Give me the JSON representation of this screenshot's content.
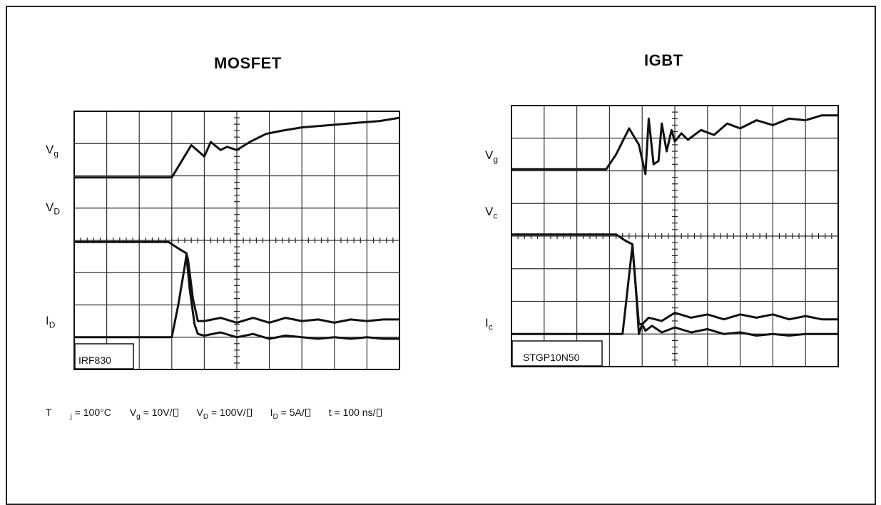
{
  "left_panel": {
    "title": "MOSFET",
    "labels": {
      "vg_main": "V",
      "vg_sub": "g",
      "vd_main": "V",
      "vd_sub": "D",
      "id_main": "I",
      "id_sub": "D"
    },
    "part": "IRF830"
  },
  "right_panel": {
    "title": "IGBT",
    "labels": {
      "vg_main": "V",
      "vg_sub": "g",
      "vc_main": "V",
      "vc_sub": "c",
      "ic_main": "I",
      "ic_sub": "c"
    },
    "part": "STGP10N50"
  },
  "conditions": {
    "tj_main": "T",
    "tj_sub": "j",
    "tj_val": " = 100°C",
    "vg_main": "V",
    "vg_sub": "g",
    "vg_val": " = 10V/",
    "vd_main": "V",
    "vd_sub": "D",
    "vd_val": " = 100V/",
    "id_main": "I",
    "id_sub": "D",
    "id_val": " = 5A/",
    "t_val": "t = 100 ns/"
  },
  "chart_data": [
    {
      "type": "line",
      "title": "MOSFET",
      "grid": true,
      "x_divisions": 10,
      "y_divisions": 8,
      "xlim": [
        0,
        10
      ],
      "ylim": [
        0,
        8
      ],
      "series": [
        {
          "name": "Vg",
          "x": [
            0,
            3.0,
            3.3,
            3.6,
            4.0,
            4.2,
            4.5,
            4.7,
            5.0,
            5.4,
            5.9,
            6.4,
            7.0,
            7.6,
            8.2,
            8.8,
            9.4,
            10.0
          ],
          "y": [
            5.95,
            5.95,
            6.45,
            6.95,
            6.6,
            7.05,
            6.8,
            6.9,
            6.8,
            7.05,
            7.3,
            7.4,
            7.5,
            7.55,
            7.6,
            7.65,
            7.7,
            7.8
          ]
        },
        {
          "name": "Vd",
          "x": [
            0,
            2.6,
            2.9,
            3.2,
            3.45,
            3.5,
            3.65,
            3.8,
            4.0,
            4.5,
            5.0,
            5.5,
            6.0,
            6.5,
            7.0,
            7.5,
            8.0,
            8.5,
            9.0,
            9.5,
            10.0
          ],
          "y": [
            3.95,
            3.95,
            3.95,
            3.75,
            3.6,
            3.4,
            2.2,
            1.5,
            1.5,
            1.6,
            1.45,
            1.6,
            1.45,
            1.6,
            1.5,
            1.55,
            1.45,
            1.55,
            1.5,
            1.55,
            1.55
          ]
        },
        {
          "name": "Id",
          "x": [
            0,
            2.9,
            3.0,
            3.2,
            3.4,
            3.45,
            3.55,
            3.7,
            3.8,
            4.0,
            4.5,
            5.0,
            5.5,
            6.0,
            6.5,
            7.0,
            7.5,
            8.0,
            8.5,
            9.0,
            9.5,
            10.0
          ],
          "y": [
            1.0,
            1.0,
            1.0,
            2.0,
            3.2,
            3.55,
            2.5,
            1.4,
            1.1,
            1.05,
            1.15,
            1.0,
            1.1,
            0.95,
            1.05,
            1.0,
            0.95,
            1.0,
            0.95,
            1.0,
            0.95,
            0.95
          ]
        }
      ]
    },
    {
      "type": "line",
      "title": "IGBT",
      "grid": true,
      "x_divisions": 10,
      "y_divisions": 8,
      "xlim": [
        0,
        10
      ],
      "ylim": [
        0,
        8
      ],
      "series": [
        {
          "name": "Vg",
          "x": [
            0,
            2.9,
            3.2,
            3.6,
            3.9,
            4.1,
            4.2,
            4.35,
            4.5,
            4.6,
            4.75,
            4.9,
            5.0,
            5.2,
            5.4,
            5.8,
            6.2,
            6.6,
            7.0,
            7.5,
            8.0,
            8.5,
            9.0,
            9.5,
            10.0
          ],
          "y": [
            6.05,
            6.05,
            6.5,
            7.3,
            6.8,
            5.9,
            7.6,
            6.2,
            6.3,
            7.45,
            6.6,
            7.25,
            6.9,
            7.15,
            6.95,
            7.25,
            7.1,
            7.45,
            7.3,
            7.55,
            7.4,
            7.6,
            7.55,
            7.7,
            7.7
          ]
        },
        {
          "name": "Vc",
          "x": [
            0,
            2.9,
            3.2,
            3.5,
            3.7,
            3.8,
            3.9,
            4.0,
            4.2,
            4.6,
            5.0,
            5.5,
            6.0,
            6.5,
            7.0,
            7.5,
            8.0,
            8.5,
            9.0,
            9.5,
            10.0
          ],
          "y": [
            4.05,
            4.05,
            4.05,
            3.85,
            3.75,
            2.5,
            1.3,
            1.3,
            1.5,
            1.4,
            1.65,
            1.5,
            1.6,
            1.45,
            1.6,
            1.5,
            1.6,
            1.45,
            1.55,
            1.45,
            1.45
          ]
        },
        {
          "name": "Ic",
          "x": [
            0,
            3.2,
            3.4,
            3.7,
            3.8,
            3.9,
            4.0,
            4.1,
            4.3,
            4.6,
            5.0,
            5.5,
            6.0,
            6.5,
            7.0,
            7.5,
            8.0,
            8.5,
            9.0,
            9.5,
            10.0
          ],
          "y": [
            1.0,
            1.0,
            1.0,
            3.7,
            2.5,
            1.0,
            1.3,
            1.1,
            1.25,
            1.05,
            1.2,
            1.05,
            1.15,
            1.0,
            1.05,
            0.95,
            1.0,
            0.95,
            1.0,
            1.0,
            1.0
          ]
        }
      ]
    }
  ]
}
